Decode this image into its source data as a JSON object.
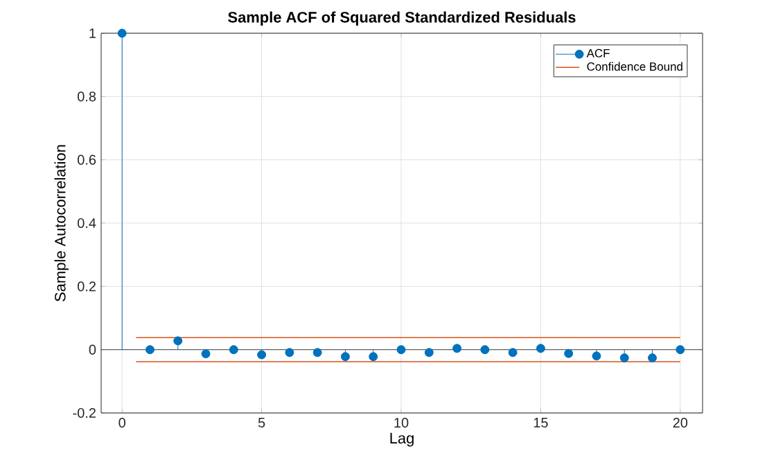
{
  "chart_data": {
    "type": "lollipop",
    "title": "Sample ACF of Squared Standardized Residuals",
    "xlabel": "Lag",
    "ylabel": "Sample Autocorrelation",
    "series": [
      {
        "name": "ACF",
        "marker": "circle",
        "color": "#0072bd",
        "x": [
          0,
          1,
          2,
          3,
          4,
          5,
          6,
          7,
          8,
          9,
          10,
          11,
          12,
          13,
          14,
          15,
          16,
          17,
          18,
          19,
          20
        ],
        "values": [
          1,
          0,
          0.028,
          -0.013,
          0,
          -0.016,
          -0.009,
          -0.009,
          -0.022,
          -0.022,
          0,
          -0.009,
          0.004,
          0,
          -0.009,
          0.004,
          -0.012,
          -0.02,
          -0.026,
          -0.026,
          0
        ]
      },
      {
        "name": "Confidence Bound",
        "type": "line",
        "marker": "none",
        "color": "#d95319",
        "x": [
          0.5,
          20
        ],
        "values": [
          0.038,
          0.038
        ]
      },
      {
        "type": "line",
        "marker": "none",
        "color": "#d95319",
        "x": [
          0.5,
          20
        ],
        "values": [
          -0.038,
          -0.038
        ]
      }
    ],
    "ref_lines": [
      {
        "axis": "y",
        "value": 0,
        "color": "#404040"
      }
    ],
    "xlim": [
      -0.75,
      20.8
    ],
    "ylim": [
      -0.2,
      1
    ],
    "xticks": [
      0,
      5,
      10,
      15,
      20
    ],
    "yticks": [
      -0.2,
      0,
      0.2,
      0.4,
      0.6,
      0.8,
      1
    ],
    "grid": true,
    "legend": "top right"
  }
}
